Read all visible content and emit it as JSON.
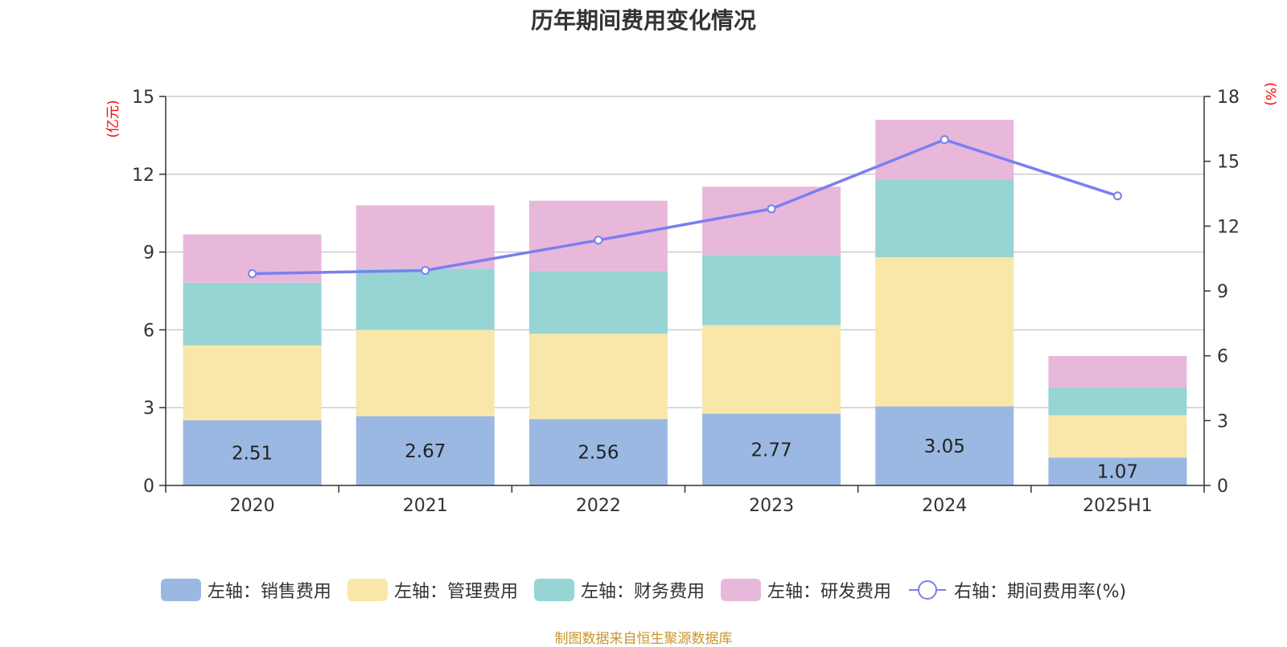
{
  "chart_data": {
    "title": "历年期间费用变化情况",
    "categories": [
      "2020",
      "2021",
      "2022",
      "2023",
      "2024",
      "2025H1"
    ],
    "left_axis": {
      "unit": "(亿元)",
      "ylim": [
        0,
        15
      ],
      "ticks": [
        0,
        3,
        6,
        9,
        12,
        15
      ]
    },
    "right_axis": {
      "unit": "(%)",
      "ylim": [
        0,
        18
      ],
      "ticks": [
        0,
        3,
        6,
        9,
        12,
        15,
        18
      ]
    },
    "series": [
      {
        "name": "左轴：销售费用",
        "type": "bar",
        "axis": "left",
        "color": "#9bb8e3",
        "values": [
          2.51,
          2.67,
          2.56,
          2.77,
          3.05,
          1.07
        ],
        "show_labels": true
      },
      {
        "name": "左轴：管理费用",
        "type": "bar",
        "axis": "left",
        "color": "#f8e7a8",
        "values": [
          2.89,
          3.33,
          3.29,
          3.41,
          5.75,
          1.64
        ]
      },
      {
        "name": "左轴：财务费用",
        "type": "bar",
        "axis": "left",
        "color": "#97d4d4",
        "values": [
          2.42,
          2.36,
          2.41,
          2.71,
          3.01,
          1.07
        ]
      },
      {
        "name": "左轴：研发费用",
        "type": "bar",
        "axis": "left",
        "color": "#e8b8da",
        "values": [
          1.86,
          2.44,
          2.72,
          2.63,
          2.29,
          1.21
        ]
      },
      {
        "name": "右轴：期间费用率(%)",
        "type": "line",
        "axis": "right",
        "color": "#7b7ff0",
        "values": [
          9.8,
          9.95,
          11.35,
          12.8,
          16.0,
          13.4
        ]
      }
    ],
    "stacked": true,
    "grid": true,
    "legend_position": "bottom"
  },
  "source": "制图数据来自恒生聚源数据库",
  "colors": {
    "axis_unit": "#ff0000",
    "source": "#c8962e",
    "grid": "#cccccc",
    "axis": "#333333"
  }
}
